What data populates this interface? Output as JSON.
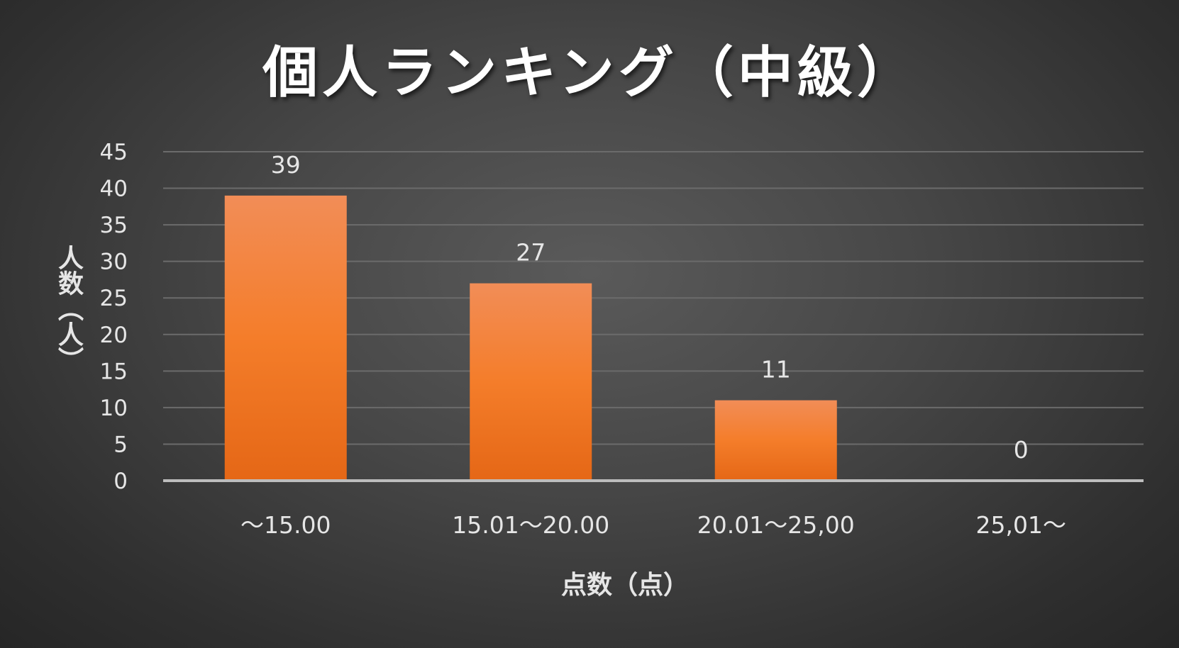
{
  "chart_data": {
    "type": "bar",
    "title": "個人ランキング（中級）",
    "xlabel": "点数（点）",
    "ylabel": "人数（人）",
    "categories": [
      "～15.00",
      "15.01～20.00",
      "20.01～25,00",
      "25,01～"
    ],
    "values": [
      39,
      27,
      11,
      0
    ],
    "ylim": [
      0,
      45
    ],
    "yticks": [
      0,
      5,
      10,
      15,
      20,
      25,
      30,
      35,
      40,
      45
    ],
    "grid": true,
    "legend": "none",
    "data_labels": true,
    "colors": {
      "bar_top": "#f28d57",
      "bar_mid": "#f47d2a",
      "bar_bottom": "#e56716",
      "grid": "#6b6b6b",
      "axis": "#bdbdbd",
      "text": "#e6e6e6",
      "title": "#ffffff"
    }
  }
}
